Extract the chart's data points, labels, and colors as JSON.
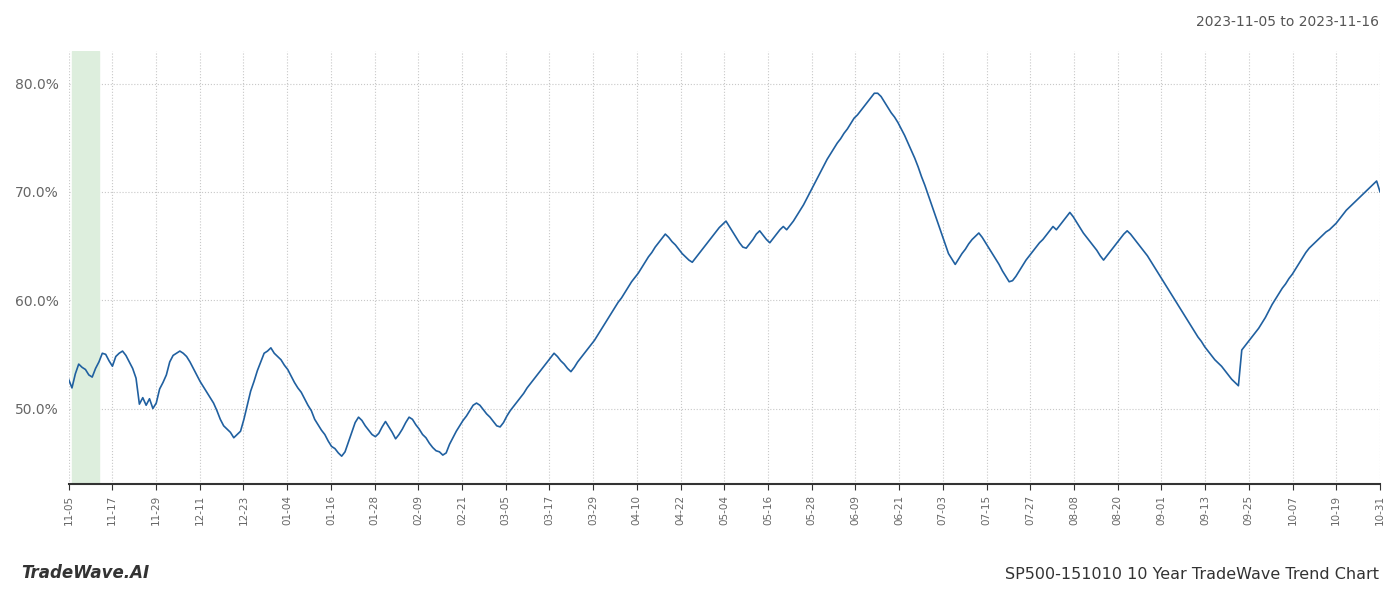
{
  "title": "SP500-151010 10 Year TradeWave Trend Chart",
  "date_range_text": "2023-11-05 to 2023-11-16",
  "watermark_left": "TradeWave.AI",
  "line_color": "#2060a0",
  "line_width": 1.2,
  "bg_color": "#ffffff",
  "grid_color": "#c8c8c8",
  "highlight_color": "#ddeedd",
  "ylim": [
    0.43,
    0.83
  ],
  "yticks": [
    0.5,
    0.6,
    0.7,
    0.8
  ],
  "ytick_labels": [
    "50.0%",
    "60.0%",
    "70.0%",
    "80.0%"
  ],
  "xtick_labels": [
    "11-05",
    "11-17",
    "11-29",
    "12-11",
    "12-23",
    "01-04",
    "01-16",
    "01-28",
    "02-09",
    "02-21",
    "03-05",
    "03-17",
    "03-29",
    "04-10",
    "04-22",
    "05-04",
    "05-16",
    "05-28",
    "06-09",
    "06-21",
    "07-03",
    "07-15",
    "07-27",
    "08-08",
    "08-20",
    "09-01",
    "09-13",
    "09-25",
    "10-07",
    "10-19",
    "10-31"
  ],
  "values": [
    0.527,
    0.519,
    0.532,
    0.541,
    0.538,
    0.536,
    0.531,
    0.529,
    0.537,
    0.543,
    0.551,
    0.55,
    0.544,
    0.539,
    0.548,
    0.551,
    0.553,
    0.549,
    0.543,
    0.537,
    0.528,
    0.504,
    0.51,
    0.503,
    0.509,
    0.5,
    0.505,
    0.518,
    0.524,
    0.531,
    0.543,
    0.549,
    0.551,
    0.553,
    0.551,
    0.548,
    0.543,
    0.537,
    0.531,
    0.525,
    0.52,
    0.515,
    0.51,
    0.505,
    0.498,
    0.49,
    0.484,
    0.481,
    0.478,
    0.473,
    0.476,
    0.479,
    0.49,
    0.503,
    0.516,
    0.525,
    0.535,
    0.543,
    0.551,
    0.553,
    0.556,
    0.551,
    0.548,
    0.545,
    0.54,
    0.536,
    0.53,
    0.524,
    0.519,
    0.515,
    0.509,
    0.503,
    0.498,
    0.49,
    0.485,
    0.48,
    0.476,
    0.47,
    0.465,
    0.463,
    0.459,
    0.456,
    0.46,
    0.469,
    0.478,
    0.487,
    0.492,
    0.489,
    0.484,
    0.48,
    0.476,
    0.474,
    0.477,
    0.483,
    0.488,
    0.483,
    0.478,
    0.472,
    0.476,
    0.481,
    0.487,
    0.492,
    0.49,
    0.485,
    0.481,
    0.476,
    0.473,
    0.468,
    0.464,
    0.461,
    0.46,
    0.457,
    0.459,
    0.467,
    0.473,
    0.479,
    0.484,
    0.489,
    0.493,
    0.498,
    0.503,
    0.505,
    0.503,
    0.499,
    0.495,
    0.492,
    0.488,
    0.484,
    0.483,
    0.487,
    0.493,
    0.498,
    0.502,
    0.506,
    0.51,
    0.514,
    0.519,
    0.523,
    0.527,
    0.531,
    0.535,
    0.539,
    0.543,
    0.547,
    0.551,
    0.548,
    0.544,
    0.541,
    0.537,
    0.534,
    0.538,
    0.543,
    0.547,
    0.551,
    0.555,
    0.559,
    0.563,
    0.568,
    0.573,
    0.578,
    0.583,
    0.588,
    0.593,
    0.598,
    0.602,
    0.607,
    0.612,
    0.617,
    0.621,
    0.625,
    0.63,
    0.635,
    0.64,
    0.644,
    0.649,
    0.653,
    0.657,
    0.661,
    0.658,
    0.654,
    0.651,
    0.647,
    0.643,
    0.64,
    0.637,
    0.635,
    0.639,
    0.643,
    0.647,
    0.651,
    0.655,
    0.659,
    0.663,
    0.667,
    0.67,
    0.673,
    0.668,
    0.663,
    0.658,
    0.653,
    0.649,
    0.648,
    0.652,
    0.656,
    0.661,
    0.664,
    0.66,
    0.656,
    0.653,
    0.657,
    0.661,
    0.665,
    0.668,
    0.665,
    0.669,
    0.673,
    0.678,
    0.683,
    0.688,
    0.694,
    0.7,
    0.706,
    0.712,
    0.718,
    0.724,
    0.73,
    0.735,
    0.74,
    0.745,
    0.749,
    0.754,
    0.758,
    0.763,
    0.768,
    0.771,
    0.775,
    0.779,
    0.783,
    0.787,
    0.791,
    0.791,
    0.788,
    0.783,
    0.778,
    0.773,
    0.769,
    0.764,
    0.758,
    0.752,
    0.745,
    0.738,
    0.731,
    0.723,
    0.714,
    0.706,
    0.697,
    0.688,
    0.679,
    0.67,
    0.661,
    0.652,
    0.643,
    0.638,
    0.633,
    0.638,
    0.643,
    0.647,
    0.652,
    0.656,
    0.659,
    0.662,
    0.658,
    0.653,
    0.648,
    0.643,
    0.638,
    0.633,
    0.627,
    0.622,
    0.617,
    0.618,
    0.622,
    0.627,
    0.632,
    0.637,
    0.641,
    0.645,
    0.649,
    0.653,
    0.656,
    0.66,
    0.664,
    0.668,
    0.665,
    0.669,
    0.673,
    0.677,
    0.681,
    0.677,
    0.672,
    0.667,
    0.662,
    0.658,
    0.654,
    0.65,
    0.646,
    0.641,
    0.637,
    0.641,
    0.645,
    0.649,
    0.653,
    0.657,
    0.661,
    0.664,
    0.661,
    0.657,
    0.653,
    0.649,
    0.645,
    0.641,
    0.636,
    0.631,
    0.626,
    0.621,
    0.616,
    0.611,
    0.606,
    0.601,
    0.596,
    0.591,
    0.586,
    0.581,
    0.576,
    0.571,
    0.566,
    0.562,
    0.557,
    0.553,
    0.549,
    0.545,
    0.542,
    0.539,
    0.535,
    0.531,
    0.527,
    0.524,
    0.521,
    0.554,
    0.558,
    0.562,
    0.566,
    0.57,
    0.574,
    0.579,
    0.584,
    0.59,
    0.596,
    0.601,
    0.606,
    0.611,
    0.615,
    0.62,
    0.624,
    0.629,
    0.634,
    0.639,
    0.644,
    0.648,
    0.651,
    0.654,
    0.657,
    0.66,
    0.663,
    0.665,
    0.668,
    0.671,
    0.675,
    0.679,
    0.683,
    0.686,
    0.689,
    0.692,
    0.695,
    0.698,
    0.701,
    0.704,
    0.707,
    0.71,
    0.7
  ]
}
